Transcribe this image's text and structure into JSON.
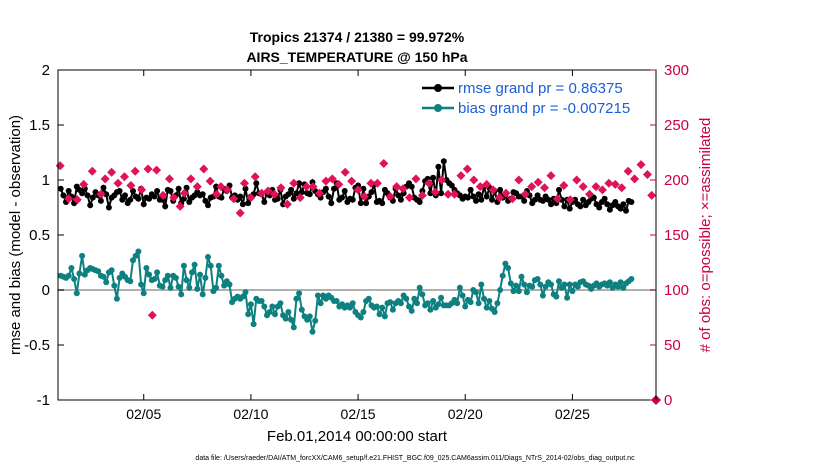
{
  "chart_data": {
    "type": "line",
    "title": "Tropics 21374 / 21380 = 99.972%",
    "subtitle": "AIRS_TEMPERATURE @ 150 hPa",
    "xlabel": "Feb.01,2014 00:00:00 start",
    "ylabel": "rmse and bias (model - observation)",
    "y2label": "# of obs: o=possible; ×=assimilated",
    "xlim": [
      1,
      28.9
    ],
    "ylim": [
      -1,
      2
    ],
    "y2lim": [
      0,
      300
    ],
    "x_ticks": [
      5,
      10,
      15,
      20,
      25
    ],
    "x_tick_labels": [
      "02/05",
      "02/10",
      "02/15",
      "02/20",
      "02/25"
    ],
    "y_ticks": [
      -1,
      -0.5,
      0,
      0.5,
      1,
      1.5,
      2
    ],
    "y_tick_labels": [
      "-1",
      "-0.5",
      "0",
      "0.5",
      "1",
      "1.5",
      "2"
    ],
    "y2_ticks": [
      0,
      50,
      100,
      150,
      200,
      250,
      300
    ],
    "y2_tick_labels": [
      "0",
      "50",
      "100",
      "150",
      "200",
      "250",
      "300"
    ],
    "legend_position": "top-right",
    "zero_line": 0,
    "series": [
      {
        "name": "rmse grand pr = 0.86375",
        "color": "#000000",
        "axis": "left",
        "marker": "circle",
        "x_start": 1.125,
        "x_step": 0.125,
        "values": [
          0.92,
          0.86,
          0.8,
          0.9,
          0.85,
          0.79,
          0.94,
          0.91,
          0.88,
          0.92,
          0.86,
          0.77,
          0.84,
          0.89,
          0.86,
          0.81,
          0.93,
          0.87,
          0.75,
          0.84,
          0.86,
          0.89,
          0.9,
          0.82,
          0.86,
          0.79,
          0.82,
          0.9,
          0.85,
          0.83,
          0.92,
          0.78,
          0.84,
          0.83,
          0.87,
          0.85,
          0.9,
          0.82,
          0.82,
          0.76,
          0.91,
          0.9,
          0.81,
          0.86,
          0.92,
          0.79,
          0.83,
          0.93,
          0.8,
          0.84,
          0.86,
          0.89,
          0.86,
          0.87,
          0.81,
          0.77,
          0.84,
          0.85,
          0.94,
          0.85,
          0.84,
          0.92,
          0.9,
          0.95,
          0.84,
          0.86,
          0.82,
          0.85,
          0.78,
          0.92,
          0.79,
          0.85,
          0.87,
          0.97,
          0.88,
          0.87,
          0.8,
          0.89,
          0.86,
          0.91,
          0.82,
          0.83,
          0.91,
          0.78,
          0.85,
          0.87,
          0.91,
          0.83,
          0.88,
          0.97,
          0.89,
          0.96,
          0.88,
          0.87,
          0.98,
          0.9,
          0.87,
          0.84,
          0.89,
          0.92,
          0.85,
          0.79,
          0.92,
          0.97,
          0.82,
          0.84,
          0.9,
          0.8,
          0.83,
          0.82,
          0.93,
          0.95,
          0.79,
          0.92,
          0.79,
          0.85,
          0.89,
          0.96,
          0.8,
          0.81,
          0.79,
          0.91,
          0.88,
          0.84,
          0.81,
          0.92,
          0.86,
          0.82,
          0.88,
          0.94,
          0.97,
          0.94,
          0.84,
          0.82,
          0.8,
          0.9,
          0.99,
          1.01,
          0.88,
          1.02,
          0.86,
          1.12,
          0.88,
          1.17,
          1.0,
          0.97,
          0.95,
          0.91,
          0.88,
          0.86,
          0.83,
          0.85,
          0.84,
          0.91,
          0.85,
          0.81,
          0.87,
          0.82,
          0.94,
          0.85,
          0.93,
          0.82,
          0.9,
          0.8,
          0.91,
          0.84,
          0.86,
          0.81,
          0.83,
          0.89,
          0.88,
          0.85,
          0.85,
          0.81,
          0.9,
          0.86,
          0.79,
          0.82,
          0.86,
          0.82,
          0.81,
          0.85,
          0.82,
          0.78,
          0.83,
          0.79,
          0.91,
          0.82,
          0.76,
          0.82,
          0.74,
          0.8,
          0.82,
          0.78,
          0.76,
          0.82,
          0.77,
          0.8,
          0.83,
          0.84,
          0.78,
          0.75,
          0.8,
          0.83,
          0.78,
          0.73,
          0.77,
          0.8,
          0.76,
          0.74,
          0.78,
          0.72,
          0.81,
          0.8
        ]
      },
      {
        "name": "bias grand pr = -0.007215",
        "color": "#0e8080",
        "axis": "left",
        "marker": "circle",
        "x_start": 1.125,
        "x_step": 0.125,
        "values": [
          0.13,
          0.12,
          0.11,
          0.13,
          0.2,
          0.1,
          -0.03,
          0.15,
          0.31,
          0.14,
          0.18,
          0.2,
          0.19,
          0.18,
          0.17,
          0.13,
          0.12,
          0.07,
          0.16,
          0.18,
          0.04,
          -0.08,
          0.11,
          0.15,
          0.12,
          0.09,
          0.08,
          0.27,
          0.31,
          0.35,
          0.05,
          -0.03,
          0.2,
          0.14,
          0.09,
          0.1,
          0.16,
          0.04,
          0.03,
          0.09,
          0.13,
          0.02,
          0.13,
          0.11,
          0.03,
          -0.04,
          0.22,
          0.09,
          0.02,
          0.16,
          0.23,
          0.01,
          0.14,
          -0.04,
          0.11,
          0.3,
          0.22,
          -0.01,
          0.02,
          0.22,
          0.13,
          0.04,
          0.08,
          0.05,
          -0.11,
          -0.08,
          -0.06,
          -0.08,
          -0.06,
          -0.02,
          -0.22,
          -0.13,
          -0.31,
          -0.08,
          -0.1,
          -0.1,
          -0.15,
          -0.23,
          -0.2,
          -0.15,
          -0.22,
          -0.15,
          -0.12,
          -0.23,
          -0.26,
          -0.2,
          -0.27,
          -0.34,
          -0.08,
          -0.03,
          -0.18,
          -0.24,
          -0.27,
          -0.24,
          -0.38,
          -0.28,
          -0.05,
          -0.12,
          -0.05,
          -0.08,
          -0.05,
          -0.07,
          -0.1,
          -0.1,
          -0.15,
          -0.13,
          -0.16,
          -0.14,
          -0.16,
          -0.12,
          -0.2,
          -0.23,
          -0.25,
          -0.2,
          -0.1,
          -0.08,
          -0.14,
          -0.16,
          -0.15,
          -0.22,
          -0.16,
          -0.24,
          -0.12,
          -0.11,
          -0.18,
          -0.12,
          -0.1,
          -0.12,
          -0.05,
          -0.08,
          -0.15,
          -0.19,
          -0.08,
          -0.12,
          0.02,
          -0.04,
          -0.14,
          -0.12,
          -0.18,
          -0.1,
          -0.16,
          -0.13,
          -0.07,
          -0.14,
          -0.14,
          -0.14,
          -0.12,
          -0.09,
          -0.12,
          0.02,
          -0.05,
          -0.15,
          -0.09,
          -0.11,
          0.0,
          -0.02,
          -0.12,
          0.05,
          -0.08,
          -0.16,
          -0.1,
          -0.17,
          -0.2,
          -0.12,
          0.0,
          0.13,
          0.24,
          0.2,
          0.06,
          -0.01,
          0.04,
          -0.01,
          0.12,
          0.05,
          -0.02,
          0.04,
          0.03,
          0.09,
          0.1,
          0.05,
          -0.05,
          0.03,
          0.07,
          0.05,
          -0.04,
          -0.06,
          0.08,
          0.02,
          0.05,
          -0.07,
          0.05,
          -0.01,
          0.05,
          0.03,
          0.07,
          0.08,
          0.05,
          0.04,
          0.01,
          0.04,
          0.06,
          0.03,
          0.05,
          0.06,
          0.04,
          0.07,
          0.02,
          0.05,
          0.03,
          0.07,
          0.02,
          0.06,
          0.08,
          0.1
        ]
      },
      {
        "name": "# of obs possible",
        "color": "#cc0044",
        "axis": "right",
        "marker": "circle-open",
        "x": [
          28.9
        ],
        "values": [
          0
        ]
      },
      {
        "name": "# of obs assimilated",
        "color": "#e0125a",
        "axis": "right",
        "marker": "x",
        "x": [
          1.1,
          1.5,
          1.9,
          2.2,
          2.6,
          3.0,
          3.2,
          3.5,
          3.8,
          4.1,
          4.4,
          4.6,
          4.9,
          5.2,
          5.4,
          5.6,
          5.9,
          6.2,
          6.4,
          6.7,
          6.9,
          7.2,
          7.5,
          7.8,
          8.1,
          8.4,
          8.6,
          8.9,
          9.2,
          9.5,
          9.7,
          10.0,
          10.2,
          10.5,
          10.8,
          11.1,
          11.4,
          11.7,
          12.0,
          12.3,
          12.6,
          12.9,
          13.2,
          13.5,
          13.8,
          14.1,
          14.4,
          14.7,
          15.0,
          15.3,
          15.6,
          15.9,
          16.2,
          16.5,
          16.8,
          17.1,
          17.4,
          17.7,
          18.0,
          18.3,
          18.6,
          18.9,
          19.2,
          19.5,
          19.8,
          20.1,
          20.4,
          20.7,
          21.0,
          21.3,
          21.6,
          21.9,
          22.2,
          22.5,
          22.8,
          23.1,
          23.4,
          23.7,
          24.0,
          24.3,
          24.6,
          24.9,
          25.2,
          25.5,
          25.8,
          26.1,
          26.4,
          26.7,
          27.0,
          27.3,
          27.6,
          27.9,
          28.2,
          28.5,
          28.7
        ],
        "values": [
          213,
          183,
          182,
          196,
          208,
          187,
          201,
          207,
          197,
          203,
          195,
          208,
          191,
          210,
          77,
          209,
          186,
          201,
          184,
          176,
          188,
          201,
          194,
          210,
          199,
          187,
          194,
          191,
          183,
          170,
          197,
          184,
          203,
          188,
          190,
          187,
          193,
          178,
          197,
          184,
          194,
          194,
          188,
          199,
          201,
          196,
          207,
          199,
          191,
          185,
          197,
          197,
          215,
          185,
          194,
          192,
          184,
          201,
          186,
          197,
          189,
          200,
          187,
          187,
          204,
          210,
          200,
          194,
          196,
          191,
          184,
          188,
          183,
          200,
          187,
          194,
          198,
          193,
          204,
          183,
          195,
          182,
          200,
          194,
          187,
          194,
          191,
          197,
          196,
          193,
          208,
          201,
          214,
          205,
          186
        ]
      }
    ]
  },
  "footer": "data file: /Users/raeder/DAI/ATM_forcXX/CAM6_setup/f.e21.FHIST_BGC.f09_025.CAM6assim.011/Diags_NTrS_2014-02/obs_diag_output.nc"
}
